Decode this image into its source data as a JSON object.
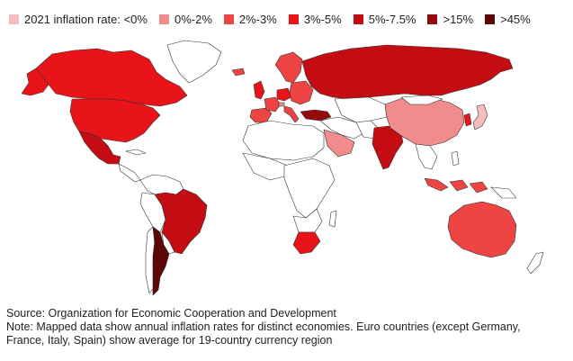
{
  "legend": [
    {
      "label": "2021 inflation rate: <0%",
      "color": "#f7bcbc"
    },
    {
      "label": "0%-2%",
      "color": "#f28b8b"
    },
    {
      "label": "2%-3%",
      "color": "#ee4444"
    },
    {
      "label": "3%-5%",
      "color": "#e8141a"
    },
    {
      "label": "5%-7.5%",
      "color": "#c40d12"
    },
    {
      "label": ">15%",
      "color": "#960a0e"
    },
    {
      "label": ">45%",
      "color": "#5b0607"
    }
  ],
  "notes": {
    "source": "Source: Organization for Economic Cooperation and Development",
    "note_line1": "Note: Mapped data show annual inflation rates for distinct economies. Euro countries (except Germany,",
    "note_line2": "France, Italy, Spain) show average for 19-country currency region"
  },
  "regions": [
    {
      "name": "japan",
      "category": "<0%"
    },
    {
      "name": "china",
      "category": "0%-2%"
    },
    {
      "name": "switzerland",
      "category": "0%-2%"
    },
    {
      "name": "australia",
      "category": "2%-3%"
    },
    {
      "name": "indonesia",
      "category": "2%-3%"
    },
    {
      "name": "euro-area",
      "category": "2%-3%"
    },
    {
      "name": "usa",
      "category": "3%-5%"
    },
    {
      "name": "canada",
      "category": "3%-5%"
    },
    {
      "name": "uk",
      "category": "3%-5%"
    },
    {
      "name": "germany",
      "category": "3%-5%"
    },
    {
      "name": "south-korea",
      "category": "3%-5%"
    },
    {
      "name": "south-africa",
      "category": "3%-5%"
    },
    {
      "name": "russia",
      "category": "5%-7.5%"
    },
    {
      "name": "mexico",
      "category": "5%-7.5%"
    },
    {
      "name": "brazil",
      "category": "5%-7.5%"
    },
    {
      "name": "india",
      "category": "5%-7.5%"
    },
    {
      "name": "saudi-arabia",
      "category": "0%-2%"
    },
    {
      "name": "turkey",
      "category": ">15%"
    },
    {
      "name": "argentina",
      "category": ">45%"
    }
  ]
}
